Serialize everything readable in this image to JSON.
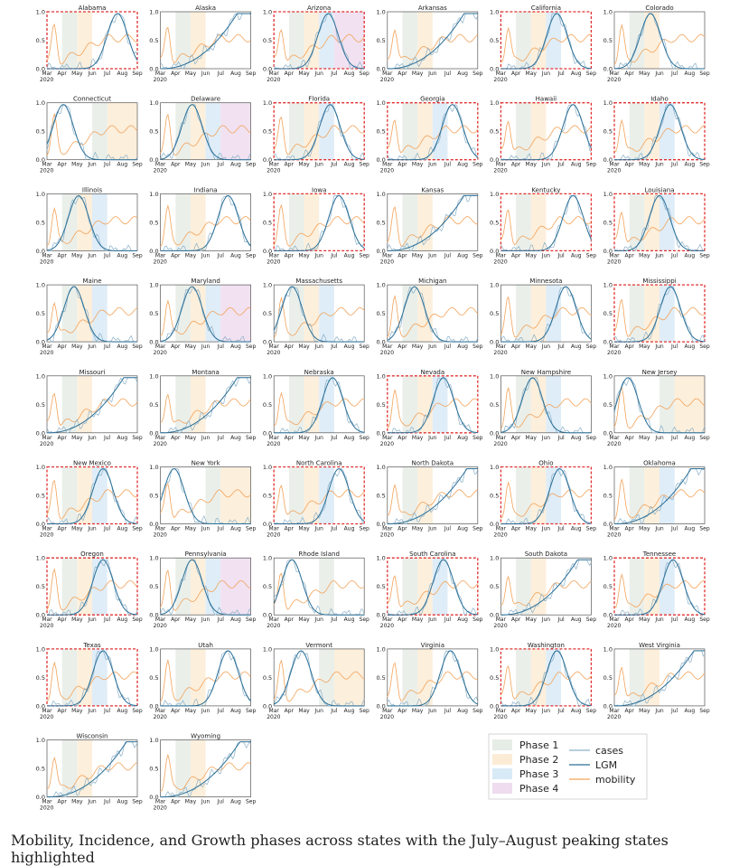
{
  "caption": "Mobility, Incidence, and Growth phases across states with the July–August peaking states highlighted",
  "colors": {
    "phase1": "#e6ece6",
    "phase2": "#fcecd6",
    "phase3": "#d9eaf7",
    "phase4": "#efdcef",
    "cases": "#8ab0c8",
    "lgm": "#2a6f97",
    "mobility": "#f3a35a",
    "highlight": "#e03030",
    "axis": "#444"
  },
  "legend": {
    "phases": [
      "Phase 1",
      "Phase 2",
      "Phase 3",
      "Phase 4"
    ],
    "lines": [
      "cases",
      "LGM",
      "mobility"
    ]
  },
  "chart_data": {
    "type": "line",
    "x_ticks": [
      "Mar",
      "Apr",
      "May",
      "Jun",
      "Jul",
      "Aug",
      "Sep"
    ],
    "x_year": "2020",
    "y_ticks": [
      "0.0",
      "0.5",
      "1.0"
    ],
    "ylim": [
      0,
      1
    ],
    "series_names": [
      "cases",
      "LGM",
      "mobility"
    ],
    "states": [
      {
        "name": "Alabama",
        "highlight": true,
        "phases": [
          [
            1,
            2
          ],
          [
            2,
            3
          ]
        ],
        "peak": 0.78
      },
      {
        "name": "Alaska",
        "highlight": false,
        "phases": [
          [
            1,
            2
          ],
          [
            2,
            3
          ]
        ],
        "peak": 0.85
      },
      {
        "name": "Arizona",
        "highlight": true,
        "phases": [
          [
            1,
            2
          ],
          [
            2,
            3
          ],
          [
            3,
            4
          ],
          [
            4,
            6
          ]
        ],
        "peak": 0.6
      },
      {
        "name": "Arkansas",
        "highlight": false,
        "phases": [
          [
            1,
            2
          ],
          [
            2,
            3
          ]
        ],
        "peak": 0.85
      },
      {
        "name": "California",
        "highlight": true,
        "phases": [
          [
            1,
            2
          ],
          [
            2,
            3
          ],
          [
            3,
            4
          ]
        ],
        "peak": 0.62
      },
      {
        "name": "Colorado",
        "highlight": false,
        "phases": [
          [
            1,
            2
          ],
          [
            2,
            3
          ]
        ],
        "peak": 0.4
      },
      {
        "name": "Connecticut",
        "highlight": false,
        "phases": [
          [
            3,
            4
          ],
          [
            4,
            6
          ]
        ],
        "peak": 0.18
      },
      {
        "name": "Delaware",
        "highlight": false,
        "phases": [
          [
            1,
            2
          ],
          [
            2,
            3
          ],
          [
            3,
            4
          ],
          [
            4,
            6
          ]
        ],
        "peak": 0.35
      },
      {
        "name": "Florida",
        "highlight": true,
        "phases": [
          [
            1,
            2
          ],
          [
            2,
            3
          ],
          [
            3,
            4
          ]
        ],
        "peak": 0.62
      },
      {
        "name": "Georgia",
        "highlight": true,
        "phases": [
          [
            1,
            2
          ],
          [
            2,
            3
          ],
          [
            3,
            4
          ]
        ],
        "peak": 0.72
      },
      {
        "name": "Hawaii",
        "highlight": true,
        "phases": [
          [
            1,
            2
          ],
          [
            2,
            3
          ]
        ],
        "peak": 0.8
      },
      {
        "name": "Idaho",
        "highlight": true,
        "phases": [
          [
            1,
            2
          ],
          [
            2,
            3
          ],
          [
            3,
            4
          ]
        ],
        "peak": 0.62
      },
      {
        "name": "Illinois",
        "highlight": false,
        "phases": [
          [
            1,
            2
          ],
          [
            2,
            3
          ],
          [
            3,
            4
          ]
        ],
        "peak": 0.35
      },
      {
        "name": "Indiana",
        "highlight": false,
        "phases": [
          [
            1,
            2
          ],
          [
            2,
            3
          ]
        ],
        "peak": 0.75
      },
      {
        "name": "Iowa",
        "highlight": true,
        "phases": [
          [
            1,
            2
          ],
          [
            2,
            3
          ]
        ],
        "peak": 0.72
      },
      {
        "name": "Kansas",
        "highlight": false,
        "phases": [
          [
            1,
            2
          ],
          [
            2,
            3
          ]
        ],
        "peak": 0.85
      },
      {
        "name": "Kentucky",
        "highlight": true,
        "phases": [
          [
            1,
            2
          ],
          [
            2,
            3
          ]
        ],
        "peak": 0.8
      },
      {
        "name": "Louisiana",
        "highlight": true,
        "phases": [
          [
            1,
            2
          ],
          [
            2,
            3
          ],
          [
            3,
            4
          ]
        ],
        "peak": 0.5
      },
      {
        "name": "Maine",
        "highlight": false,
        "phases": [
          [
            1,
            2
          ],
          [
            2,
            3
          ],
          [
            3,
            4
          ]
        ],
        "peak": 0.3
      },
      {
        "name": "Maryland",
        "highlight": false,
        "phases": [
          [
            1,
            2
          ],
          [
            2,
            3
          ],
          [
            3,
            4
          ],
          [
            4,
            6
          ]
        ],
        "peak": 0.35
      },
      {
        "name": "Massachusetts",
        "highlight": false,
        "phases": [
          [
            1,
            2
          ],
          [
            2,
            3
          ],
          [
            3,
            4
          ]
        ],
        "peak": 0.2
      },
      {
        "name": "Michigan",
        "highlight": false,
        "phases": [
          [
            1,
            2
          ],
          [
            2,
            3
          ]
        ],
        "peak": 0.3
      },
      {
        "name": "Minnesota",
        "highlight": false,
        "phases": [
          [
            1,
            2
          ],
          [
            2,
            3
          ],
          [
            3,
            4
          ]
        ],
        "peak": 0.72
      },
      {
        "name": "Mississippi",
        "highlight": true,
        "phases": [
          [
            1,
            2
          ],
          [
            2,
            3
          ],
          [
            3,
            4
          ]
        ],
        "peak": 0.62
      },
      {
        "name": "Missouri",
        "highlight": false,
        "phases": [
          [
            1,
            2
          ],
          [
            2,
            3
          ]
        ],
        "peak": 0.85
      },
      {
        "name": "Montana",
        "highlight": false,
        "phases": [
          [
            1,
            2
          ],
          [
            2,
            3
          ]
        ],
        "peak": 0.85
      },
      {
        "name": "Nebraska",
        "highlight": false,
        "phases": [
          [
            1,
            2
          ],
          [
            2,
            3
          ],
          [
            3,
            4
          ]
        ],
        "peak": 0.65
      },
      {
        "name": "Nevada",
        "highlight": true,
        "phases": [
          [
            1,
            2
          ],
          [
            2,
            3
          ],
          [
            3,
            4
          ]
        ],
        "peak": 0.62
      },
      {
        "name": "New Hampshire",
        "highlight": false,
        "phases": [
          [
            1,
            2
          ],
          [
            2,
            3
          ],
          [
            3,
            4
          ]
        ],
        "peak": 0.35
      },
      {
        "name": "New Jersey",
        "highlight": false,
        "phases": [
          [
            3,
            4
          ],
          [
            4,
            6
          ]
        ],
        "peak": 0.15
      },
      {
        "name": "New Mexico",
        "highlight": true,
        "phases": [
          [
            1,
            2
          ],
          [
            2,
            3
          ],
          [
            3,
            4
          ]
        ],
        "peak": 0.62
      },
      {
        "name": "New York",
        "highlight": false,
        "phases": [
          [
            3,
            4
          ],
          [
            4,
            6
          ]
        ],
        "peak": 0.15
      },
      {
        "name": "North Carolina",
        "highlight": true,
        "phases": [
          [
            1,
            2
          ],
          [
            2,
            3
          ],
          [
            3,
            4
          ]
        ],
        "peak": 0.72
      },
      {
        "name": "North Dakota",
        "highlight": false,
        "phases": [
          [
            1,
            2
          ],
          [
            2,
            3
          ]
        ],
        "peak": 0.88
      },
      {
        "name": "Ohio",
        "highlight": true,
        "phases": [
          [
            1,
            2
          ],
          [
            2,
            3
          ],
          [
            3,
            4
          ]
        ],
        "peak": 0.65
      },
      {
        "name": "Oklahoma",
        "highlight": false,
        "phases": [
          [
            1,
            2
          ],
          [
            2,
            3
          ],
          [
            3,
            4
          ]
        ],
        "peak": 0.85
      },
      {
        "name": "Oregon",
        "highlight": true,
        "phases": [
          [
            1,
            2
          ],
          [
            2,
            3
          ],
          [
            3,
            4
          ]
        ],
        "peak": 0.62
      },
      {
        "name": "Pennsylvania",
        "highlight": false,
        "phases": [
          [
            1,
            2
          ],
          [
            2,
            3
          ],
          [
            3,
            4
          ],
          [
            4,
            6
          ]
        ],
        "peak": 0.35
      },
      {
        "name": "Rhode Island",
        "highlight": false,
        "phases": [
          [
            3,
            4
          ]
        ],
        "peak": 0.2
      },
      {
        "name": "South Carolina",
        "highlight": true,
        "phases": [
          [
            1,
            2
          ],
          [
            2,
            3
          ],
          [
            3,
            4
          ]
        ],
        "peak": 0.62
      },
      {
        "name": "South Dakota",
        "highlight": false,
        "phases": [
          [
            1,
            2
          ],
          [
            2,
            3
          ]
        ],
        "peak": 0.85
      },
      {
        "name": "Tennessee",
        "highlight": true,
        "phases": [
          [
            1,
            2
          ],
          [
            2,
            3
          ],
          [
            3,
            4
          ]
        ],
        "peak": 0.65
      },
      {
        "name": "Texas",
        "highlight": true,
        "phases": [
          [
            1,
            2
          ],
          [
            2,
            3
          ],
          [
            3,
            4
          ]
        ],
        "peak": 0.62
      },
      {
        "name": "Utah",
        "highlight": false,
        "phases": [
          [
            1,
            2
          ],
          [
            2,
            3
          ]
        ],
        "peak": 0.75
      },
      {
        "name": "Vermont",
        "highlight": false,
        "phases": [
          [
            3,
            4
          ],
          [
            4,
            6
          ]
        ],
        "peak": 0.3
      },
      {
        "name": "Virginia",
        "highlight": false,
        "phases": [
          [
            1,
            2
          ],
          [
            2,
            3
          ]
        ],
        "peak": 0.7
      },
      {
        "name": "Washington",
        "highlight": true,
        "phases": [
          [
            1,
            2
          ],
          [
            2,
            3
          ],
          [
            3,
            4
          ]
        ],
        "peak": 0.62
      },
      {
        "name": "West Virginia",
        "highlight": false,
        "phases": [
          [
            1,
            2
          ],
          [
            2,
            3
          ]
        ],
        "peak": 0.88
      },
      {
        "name": "Wisconsin",
        "highlight": false,
        "phases": [
          [
            1,
            2
          ],
          [
            2,
            3
          ]
        ],
        "peak": 0.88
      },
      {
        "name": "Wyoming",
        "highlight": false,
        "phases": [
          [
            1,
            2
          ],
          [
            2,
            3
          ]
        ],
        "peak": 0.88
      }
    ]
  }
}
